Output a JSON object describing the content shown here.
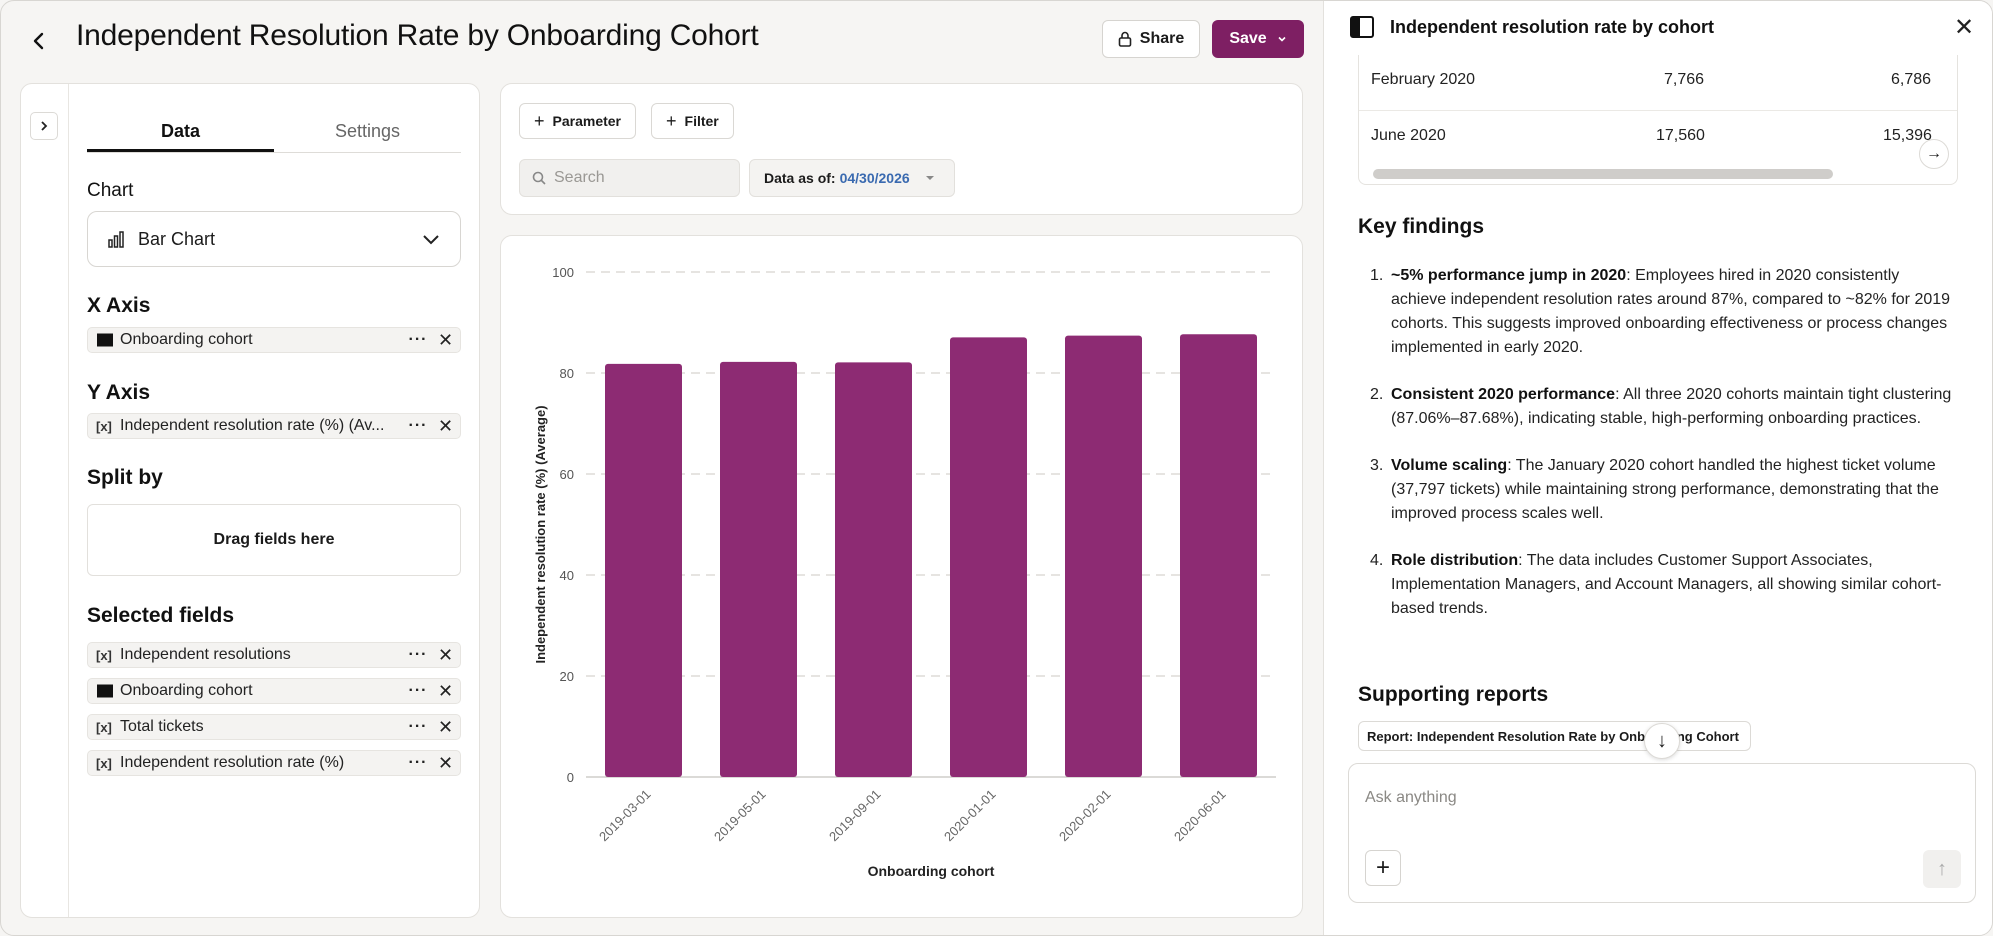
{
  "header": {
    "title": "Independent Resolution Rate by Onboarding Cohort",
    "share_label": "Share",
    "save_label": "Save"
  },
  "config": {
    "tabs": [
      {
        "label": "Data",
        "active": true
      },
      {
        "label": "Settings",
        "active": false
      }
    ],
    "chart_label": "Chart",
    "chart_type": "Bar Chart",
    "x_axis_label": "X Axis",
    "x_axis_field": {
      "icon": "calendar-icon",
      "label": "Onboarding cohort"
    },
    "y_axis_label": "Y Axis",
    "y_axis_field": {
      "icon": "measure-icon",
      "label": "Independent resolution rate (%) (Av..."
    },
    "split_label": "Split by",
    "dropzone": "Drag fields here",
    "selected_label": "Selected fields",
    "selected_fields": [
      {
        "icon": "measure-icon",
        "label": "Independent resolutions"
      },
      {
        "icon": "calendar-icon",
        "label": "Onboarding cohort"
      },
      {
        "icon": "measure-icon",
        "label": "Total tickets"
      },
      {
        "icon": "measure-icon",
        "label": "Independent resolution rate (%)"
      }
    ],
    "measure_glyph": "[x]"
  },
  "toolbar": {
    "parameter_label": "Parameter",
    "filter_label": "Filter",
    "search_placeholder": "Search",
    "data_asof_label": "Data as of:",
    "data_asof_date": "04/30/2026"
  },
  "chart_data": {
    "type": "bar",
    "categories": [
      "2019-03-01",
      "2019-05-01",
      "2019-09-01",
      "2020-01-01",
      "2020-02-01",
      "2020-06-01"
    ],
    "values": [
      81.8,
      82.2,
      82.1,
      87.06,
      87.4,
      87.68
    ],
    "xlabel": "Onboarding cohort",
    "ylabel": "Independent resolution rate (%) (Average)",
    "ylim": [
      0,
      100
    ],
    "yticks": [
      0,
      20,
      40,
      60,
      80,
      100
    ],
    "grid": true,
    "bar_color": "#8d2b73"
  },
  "assistant": {
    "title": "Independent resolution rate by cohort",
    "table_rows": [
      {
        "cohort": "February 2020",
        "tickets": "7,766",
        "resolutions": "6,786"
      },
      {
        "cohort": "June 2020",
        "tickets": "17,560",
        "resolutions": "15,396"
      }
    ],
    "key_findings_title": "Key findings",
    "findings": [
      {
        "num": "1.",
        "bold": "~5% performance jump in 2020",
        "text": ": Employees hired in 2020 consistently achieve independent resolution rates around 87%, compared to ~82% for 2019 cohorts. This suggests improved onboarding effectiveness or process changes implemented in early 2020."
      },
      {
        "num": "2.",
        "bold": "Consistent 2020 performance",
        "text": ": All three 2020 cohorts maintain tight clustering (87.06%–87.68%), indicating stable, high-performing onboarding practices."
      },
      {
        "num": "3.",
        "bold": "Volume scaling",
        "text": ": The January 2020 cohort handled the highest ticket volume (37,797 tickets) while maintaining strong performance, demonstrating that the improved process scales well."
      },
      {
        "num": "4.",
        "bold": "Role distribution",
        "text": ": The data includes Customer Support Associates, Implementation Managers, and Account Managers, all showing similar cohort-based trends."
      }
    ],
    "supporting_title": "Supporting reports",
    "supporting_chip": "Report: Independent Resolution Rate by Onboarding Cohort",
    "ask_placeholder": "Ask anything"
  },
  "colors": {
    "accent": "#7e1f63",
    "bar": "#8d2b73",
    "date_link": "#3a6ab0"
  }
}
